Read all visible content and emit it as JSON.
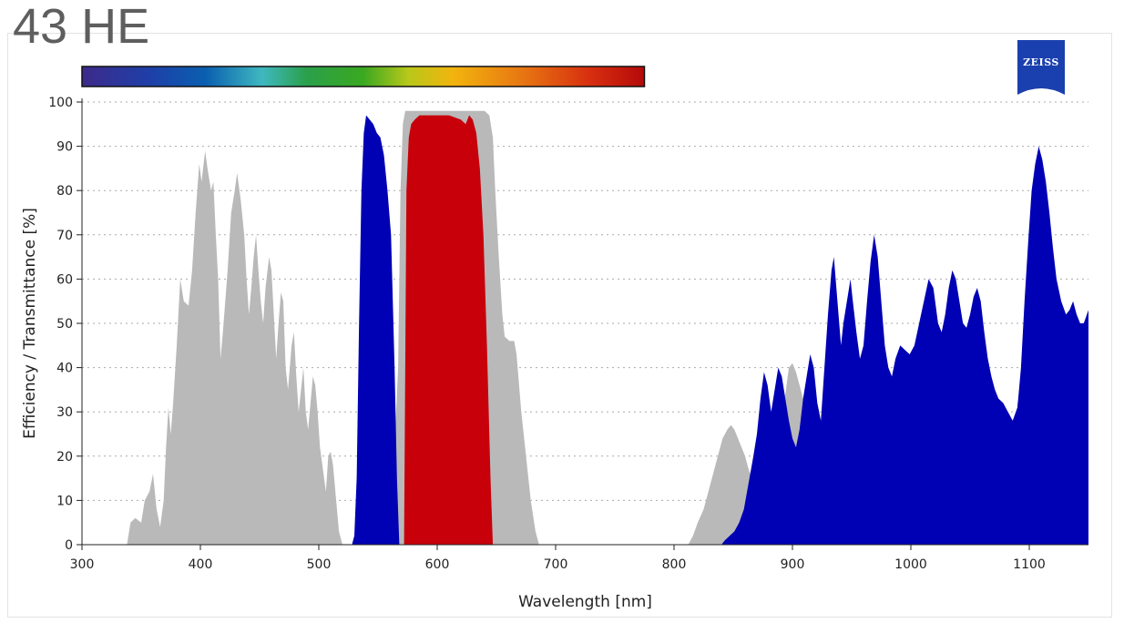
{
  "title": "43 HE",
  "brand": "ZEISS",
  "colors": {
    "excitation": "#0000b4",
    "emission": "#c8000a",
    "dichroic": "#b9b9b9",
    "grid": "#aaaaaa",
    "logo": "#1a3fae"
  },
  "chart_data": {
    "type": "area",
    "xlabel": "Wavelength [nm]",
    "ylabel": "Efficiency / Transmittance [%]",
    "xlim": [
      300,
      1150
    ],
    "ylim": [
      0,
      100
    ],
    "xticks": [
      300,
      400,
      500,
      600,
      700,
      800,
      900,
      1000,
      1100
    ],
    "yticks": [
      0,
      10,
      20,
      30,
      40,
      50,
      60,
      70,
      80,
      90,
      100
    ],
    "grid": "horizontal dotted",
    "spectrum_bar": {
      "from_nm": 300,
      "to_nm": 775
    },
    "series": [
      {
        "role": "dichroic",
        "color": "#b9b9b9",
        "points": [
          [
            338,
            0
          ],
          [
            341,
            5
          ],
          [
            345,
            6
          ],
          [
            350,
            5
          ],
          [
            353,
            10
          ],
          [
            357,
            12
          ],
          [
            360,
            16
          ],
          [
            363,
            8
          ],
          [
            366,
            4
          ],
          [
            369,
            10
          ],
          [
            371,
            22
          ],
          [
            373,
            31
          ],
          [
            375,
            25
          ],
          [
            377,
            32
          ],
          [
            380,
            45
          ],
          [
            383,
            60
          ],
          [
            386,
            55
          ],
          [
            390,
            54
          ],
          [
            393,
            62
          ],
          [
            396,
            75
          ],
          [
            399,
            86
          ],
          [
            401,
            82
          ],
          [
            404,
            89
          ],
          [
            406,
            85
          ],
          [
            409,
            80
          ],
          [
            411,
            82
          ],
          [
            413,
            70
          ],
          [
            415,
            60
          ],
          [
            417,
            42
          ],
          [
            419,
            48
          ],
          [
            421,
            55
          ],
          [
            423,
            62
          ],
          [
            426,
            75
          ],
          [
            429,
            80
          ],
          [
            431,
            84
          ],
          [
            434,
            78
          ],
          [
            437,
            70
          ],
          [
            439,
            60
          ],
          [
            441,
            52
          ],
          [
            443,
            58
          ],
          [
            445,
            65
          ],
          [
            447,
            70
          ],
          [
            449,
            62
          ],
          [
            451,
            55
          ],
          [
            453,
            50
          ],
          [
            455,
            58
          ],
          [
            458,
            65
          ],
          [
            460,
            62
          ],
          [
            462,
            52
          ],
          [
            464,
            42
          ],
          [
            466,
            50
          ],
          [
            468,
            57
          ],
          [
            470,
            55
          ],
          [
            472,
            40
          ],
          [
            474,
            35
          ],
          [
            477,
            45
          ],
          [
            479,
            48
          ],
          [
            481,
            38
          ],
          [
            483,
            30
          ],
          [
            485,
            35
          ],
          [
            487,
            40
          ],
          [
            489,
            30
          ],
          [
            491,
            26
          ],
          [
            493,
            32
          ],
          [
            495,
            38
          ],
          [
            497,
            36
          ],
          [
            499,
            30
          ],
          [
            501,
            22
          ],
          [
            503,
            18
          ],
          [
            506,
            12
          ],
          [
            508,
            20
          ],
          [
            510,
            21
          ],
          [
            512,
            18
          ],
          [
            514,
            12
          ],
          [
            517,
            3
          ],
          [
            520,
            0
          ],
          [
            535,
            0
          ],
          [
            560,
            0
          ],
          [
            567,
            40
          ],
          [
            569,
            80
          ],
          [
            571,
            95
          ],
          [
            573,
            98
          ],
          [
            590,
            98
          ],
          [
            620,
            98
          ],
          [
            640,
            98
          ],
          [
            644,
            97
          ],
          [
            647,
            92
          ],
          [
            649,
            80
          ],
          [
            652,
            65
          ],
          [
            655,
            52
          ],
          [
            657,
            47
          ],
          [
            661,
            46
          ],
          [
            665,
            46
          ],
          [
            667,
            43
          ],
          [
            671,
            30
          ],
          [
            675,
            20
          ],
          [
            679,
            10
          ],
          [
            683,
            3
          ],
          [
            686,
            0
          ],
          [
            812,
            0
          ],
          [
            816,
            2
          ],
          [
            820,
            5
          ],
          [
            825,
            8
          ],
          [
            829,
            12
          ],
          [
            833,
            16
          ],
          [
            837,
            20
          ],
          [
            841,
            24
          ],
          [
            845,
            26
          ],
          [
            848,
            27
          ],
          [
            851,
            26
          ],
          [
            854,
            24
          ],
          [
            857,
            22
          ],
          [
            860,
            20
          ],
          [
            863,
            17
          ],
          [
            866,
            15
          ],
          [
            869,
            17
          ],
          [
            872,
            22
          ],
          [
            875,
            28
          ],
          [
            878,
            32
          ],
          [
            880,
            29
          ],
          [
            883,
            24
          ],
          [
            886,
            21
          ],
          [
            888,
            24
          ],
          [
            891,
            28
          ],
          [
            894,
            34
          ],
          [
            897,
            40
          ],
          [
            900,
            41
          ],
          [
            903,
            39
          ],
          [
            906,
            36
          ],
          [
            909,
            33
          ],
          [
            912,
            30
          ],
          [
            915,
            35
          ],
          [
            918,
            30
          ],
          [
            920,
            26
          ],
          [
            925,
            15
          ],
          [
            930,
            10
          ]
        ]
      },
      {
        "role": "dichroic-inband",
        "color": "#b9b9b9",
        "points": [
          [
            1089,
            10
          ],
          [
            1090,
            32
          ],
          [
            1094,
            35
          ],
          [
            1098,
            33
          ],
          [
            1102,
            28
          ],
          [
            1106,
            27
          ],
          [
            1109,
            30
          ],
          [
            1112,
            10
          ]
        ]
      },
      {
        "role": "excitation",
        "color": "#0000b4",
        "points": [
          [
            528,
            0
          ],
          [
            530,
            2
          ],
          [
            532,
            15
          ],
          [
            534,
            50
          ],
          [
            536,
            80
          ],
          [
            538,
            93
          ],
          [
            540,
            97
          ],
          [
            543,
            96
          ],
          [
            546,
            95
          ],
          [
            549,
            93
          ],
          [
            552,
            92
          ],
          [
            555,
            88
          ],
          [
            558,
            80
          ],
          [
            561,
            70
          ],
          [
            564,
            40
          ],
          [
            566,
            15
          ],
          [
            568,
            0
          ]
        ]
      },
      {
        "role": "excitation",
        "color": "#0000b4",
        "points": [
          [
            840,
            0
          ],
          [
            843,
            1
          ],
          [
            847,
            2
          ],
          [
            851,
            3
          ],
          [
            855,
            5
          ],
          [
            859,
            8
          ],
          [
            863,
            14
          ],
          [
            867,
            20
          ],
          [
            870,
            25
          ],
          [
            873,
            33
          ],
          [
            876,
            39
          ],
          [
            879,
            36
          ],
          [
            882,
            30
          ],
          [
            885,
            35
          ],
          [
            888,
            40
          ],
          [
            891,
            38
          ],
          [
            894,
            33
          ],
          [
            897,
            28
          ],
          [
            900,
            24
          ],
          [
            903,
            22
          ],
          [
            906,
            26
          ],
          [
            909,
            33
          ],
          [
            912,
            38
          ],
          [
            915,
            43
          ],
          [
            918,
            40
          ],
          [
            921,
            32
          ],
          [
            924,
            28
          ],
          [
            927,
            40
          ],
          [
            930,
            52
          ],
          [
            933,
            62
          ],
          [
            935,
            65
          ],
          [
            938,
            55
          ],
          [
            941,
            45
          ],
          [
            943,
            50
          ],
          [
            946,
            55
          ],
          [
            949,
            60
          ],
          [
            951,
            55
          ],
          [
            954,
            48
          ],
          [
            957,
            42
          ],
          [
            960,
            45
          ],
          [
            963,
            55
          ],
          [
            966,
            64
          ],
          [
            969,
            70
          ],
          [
            972,
            65
          ],
          [
            975,
            55
          ],
          [
            978,
            45
          ],
          [
            981,
            40
          ],
          [
            984,
            38
          ],
          [
            987,
            42
          ],
          [
            991,
            45
          ],
          [
            995,
            44
          ],
          [
            999,
            43
          ],
          [
            1003,
            45
          ],
          [
            1007,
            50
          ],
          [
            1011,
            55
          ],
          [
            1015,
            60
          ],
          [
            1019,
            58
          ],
          [
            1023,
            50
          ],
          [
            1026,
            48
          ],
          [
            1029,
            52
          ],
          [
            1032,
            58
          ],
          [
            1035,
            62
          ],
          [
            1038,
            60
          ],
          [
            1041,
            55
          ],
          [
            1044,
            50
          ],
          [
            1047,
            49
          ],
          [
            1050,
            52
          ],
          [
            1053,
            56
          ],
          [
            1056,
            58
          ],
          [
            1059,
            55
          ],
          [
            1062,
            48
          ],
          [
            1065,
            42
          ],
          [
            1068,
            38
          ],
          [
            1071,
            35
          ],
          [
            1074,
            33
          ],
          [
            1078,
            32
          ],
          [
            1082,
            30
          ],
          [
            1086,
            28
          ],
          [
            1090,
            31
          ],
          [
            1093,
            40
          ],
          [
            1096,
            55
          ],
          [
            1099,
            68
          ],
          [
            1102,
            80
          ],
          [
            1105,
            86
          ],
          [
            1108,
            90
          ],
          [
            1111,
            87
          ],
          [
            1114,
            82
          ],
          [
            1117,
            75
          ],
          [
            1120,
            67
          ],
          [
            1123,
            60
          ],
          [
            1127,
            55
          ],
          [
            1131,
            52
          ],
          [
            1134,
            53
          ],
          [
            1137,
            55
          ],
          [
            1140,
            52
          ],
          [
            1143,
            50
          ],
          [
            1146,
            50
          ],
          [
            1150,
            53
          ]
        ]
      },
      {
        "role": "emission",
        "color": "#c8000a",
        "points": [
          [
            572,
            0
          ],
          [
            574,
            80
          ],
          [
            576,
            92
          ],
          [
            578,
            95
          ],
          [
            581,
            96
          ],
          [
            585,
            97
          ],
          [
            590,
            97
          ],
          [
            600,
            97
          ],
          [
            610,
            97
          ],
          [
            620,
            96
          ],
          [
            624,
            95
          ],
          [
            627,
            97
          ],
          [
            630,
            96
          ],
          [
            633,
            93
          ],
          [
            636,
            85
          ],
          [
            639,
            70
          ],
          [
            642,
            45
          ],
          [
            645,
            15
          ],
          [
            647,
            0
          ]
        ]
      }
    ]
  }
}
